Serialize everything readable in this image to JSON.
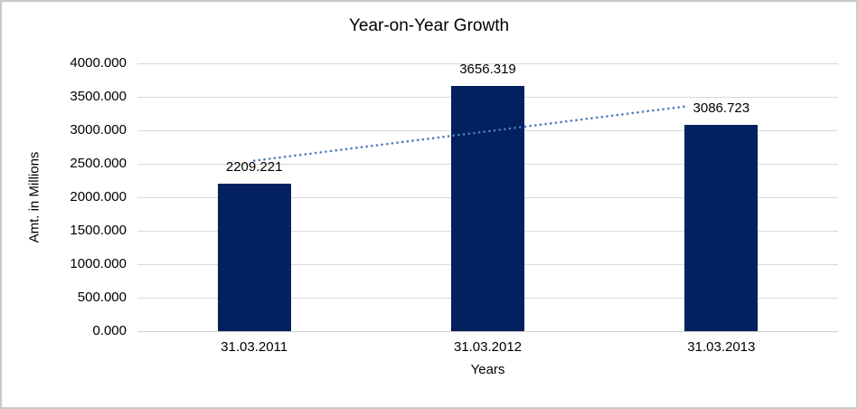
{
  "frame": {
    "background_color": "#ffffff",
    "border_color": "#c9c9c9"
  },
  "chart_data": {
    "type": "bar",
    "title": "Year-on-Year Growth",
    "xlabel": "Years",
    "ylabel": "Amt. in Millions",
    "categories": [
      "31.03.2011",
      "31.03.2012",
      "31.03.2013"
    ],
    "values": [
      2209.221,
      3656.319,
      3086.723
    ],
    "data_labels": [
      "2209.221",
      "3656.319",
      "3086.723"
    ],
    "ylim": [
      0,
      4000
    ],
    "yticks": [
      {
        "value": 0,
        "label": "0.000"
      },
      {
        "value": 500,
        "label": "500.000"
      },
      {
        "value": 1000,
        "label": "1000.000"
      },
      {
        "value": 1500,
        "label": "1500.000"
      },
      {
        "value": 2000,
        "label": "2000.000"
      },
      {
        "value": 2500,
        "label": "2500.000"
      },
      {
        "value": 3000,
        "label": "3000.000"
      },
      {
        "value": 3500,
        "label": "3500.000"
      },
      {
        "value": 4000,
        "label": "4000.000"
      }
    ],
    "grid": true,
    "legend": "none",
    "bar_color": "#02215e",
    "gridline_color": "#d9d9d9",
    "axis_line_color": "#d0d0d0",
    "text_color": "#000000",
    "trendline": {
      "type": "linear",
      "style": "dotted",
      "color": "#4a7ebb",
      "from": {
        "category_index": 0,
        "value": 2546
      },
      "to": {
        "category_index": 2,
        "value": 3424
      }
    }
  }
}
